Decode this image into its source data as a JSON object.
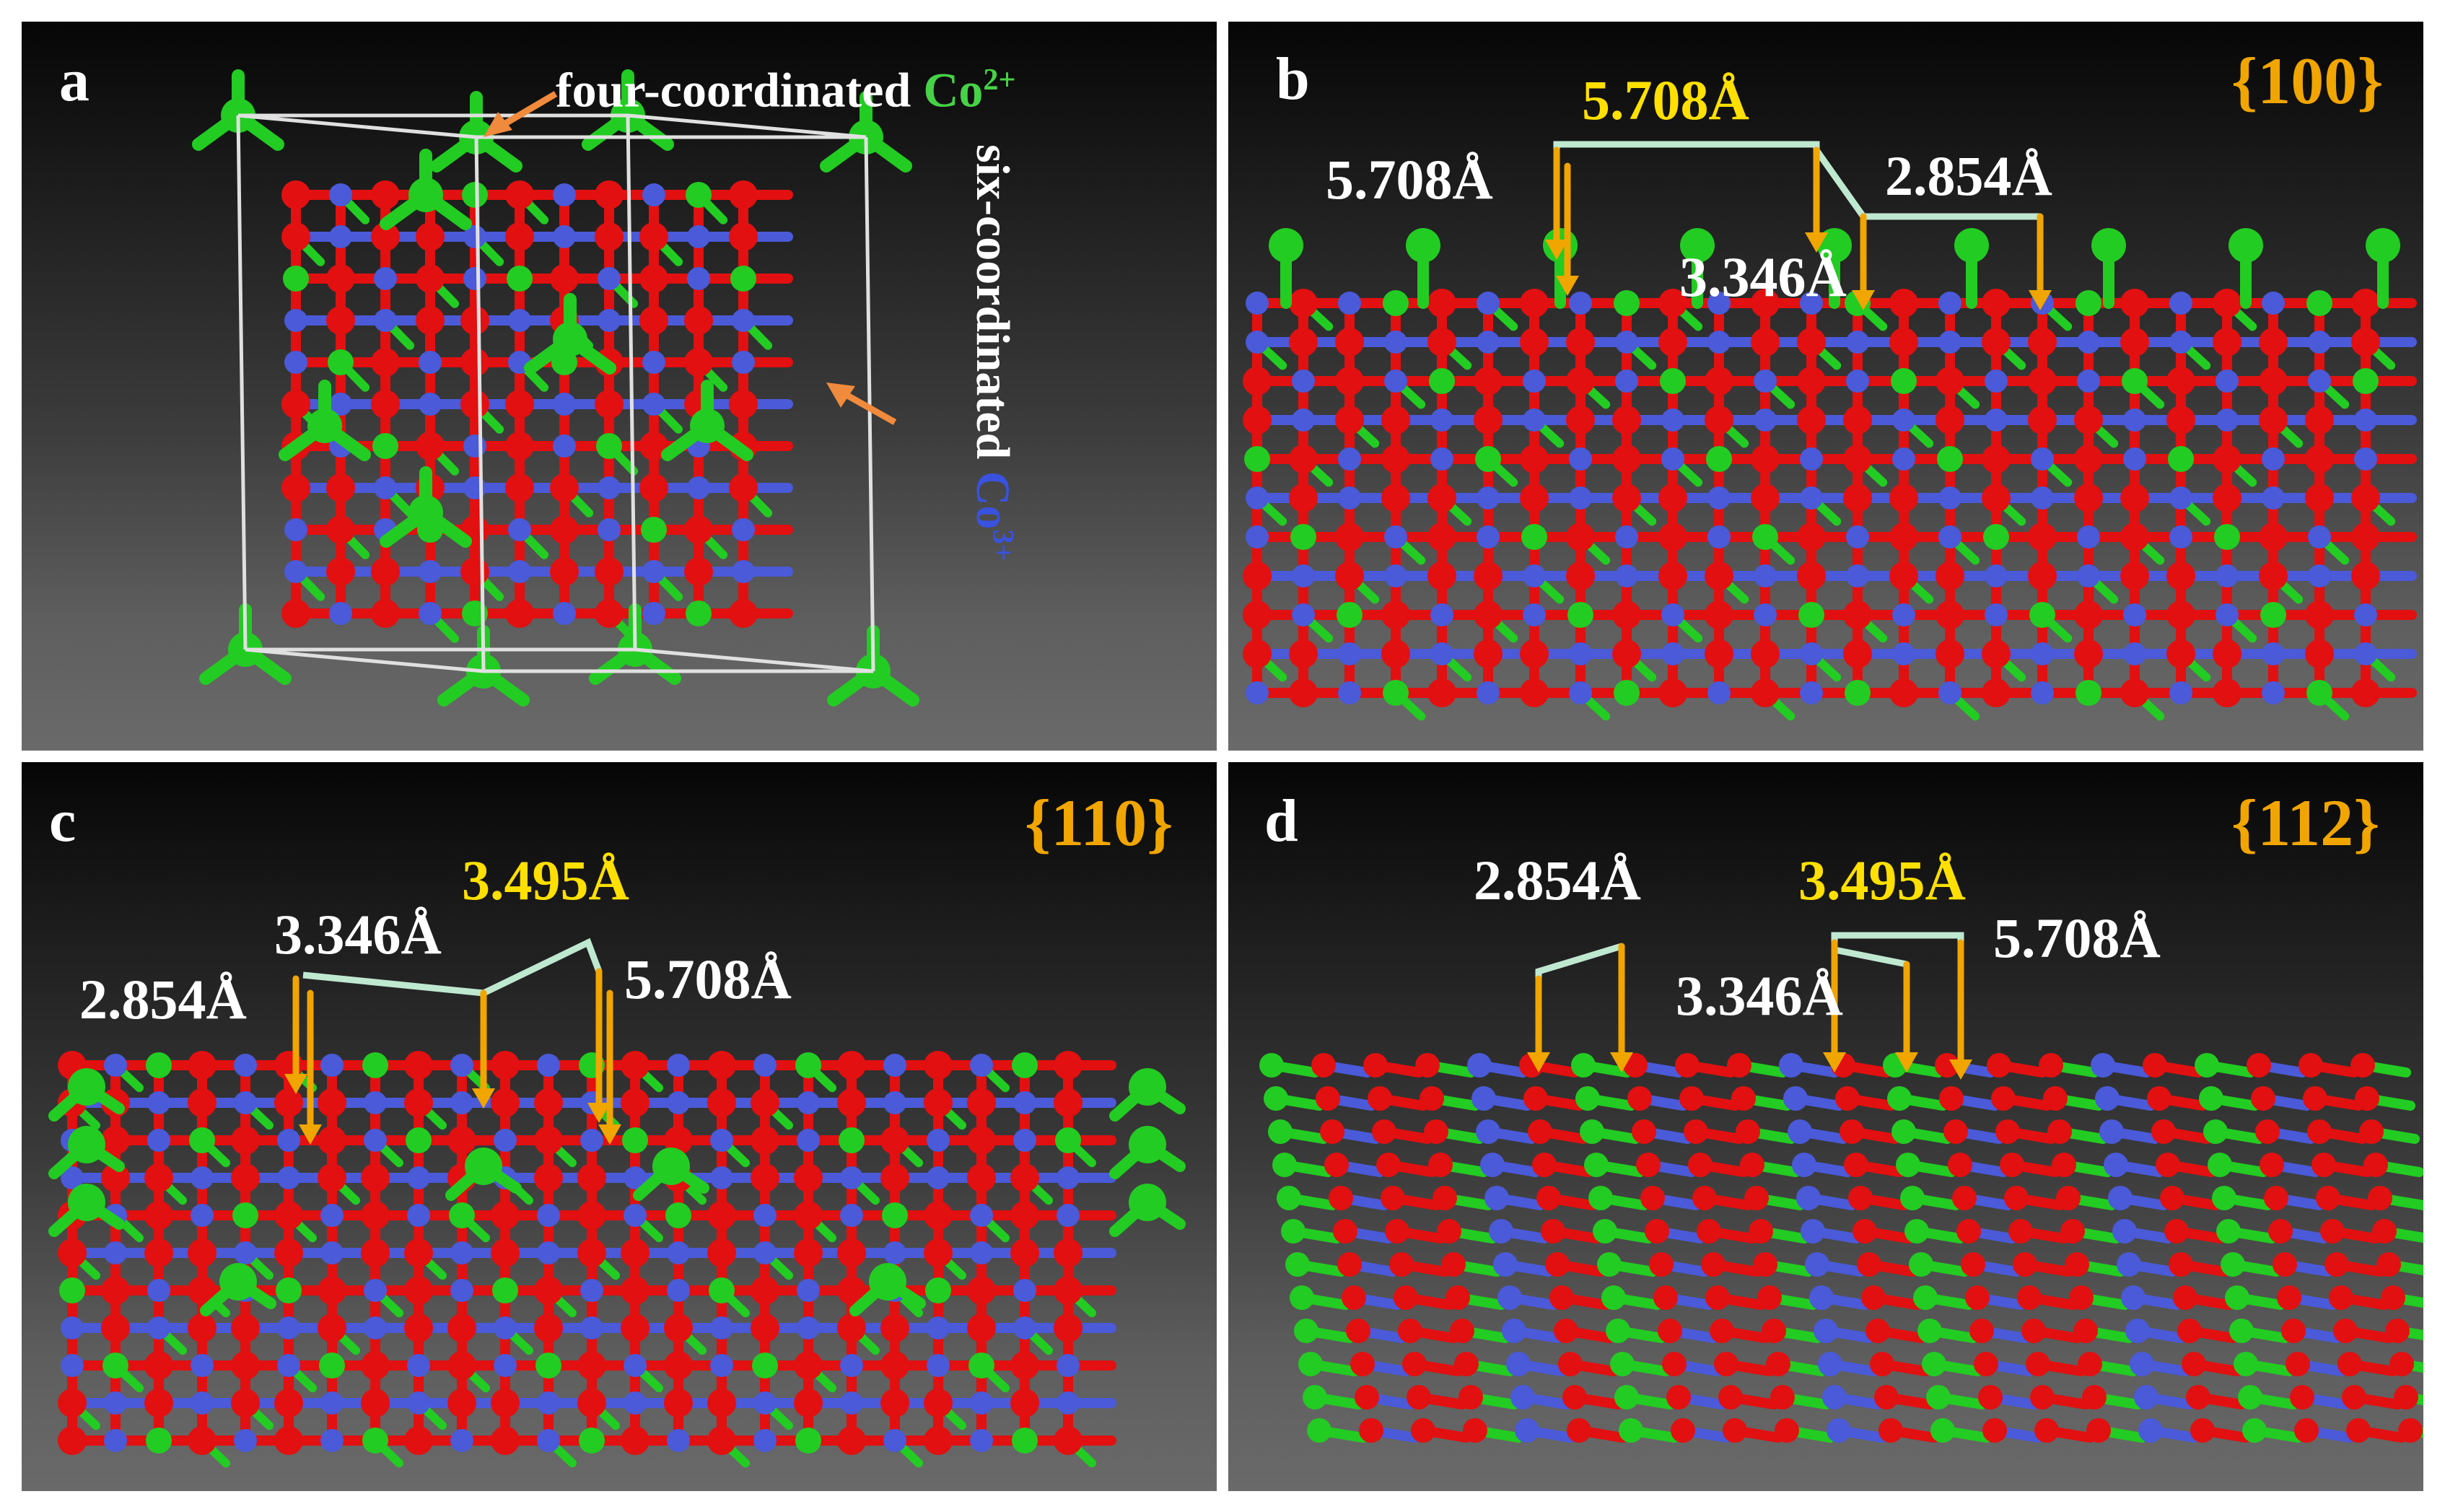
{
  "panels": [
    {
      "letter": "a"
    },
    {
      "letter": "b",
      "facet": "{100}",
      "measurements": [
        "5.708Å",
        "5.708Å",
        "2.854Å",
        "3.346Å"
      ]
    },
    {
      "letter": "c",
      "facet": "{110}",
      "measurements": [
        "3.495Å",
        "3.346Å",
        "2.854Å",
        "5.708Å"
      ]
    },
    {
      "letter": "d",
      "facet": "{112}",
      "measurements": [
        "2.854Å",
        "3.495Å",
        "5.708Å",
        "3.346Å"
      ]
    }
  ],
  "annotations": {
    "four_coord_text": "four-coordinated ",
    "four_coord_ion": "Co",
    "four_coord_charge": "2+",
    "six_coord_text": "six-coordinated ",
    "six_coord_ion": "Co",
    "six_coord_charge": "3+"
  },
  "colors": {
    "oxygen": "#e21010",
    "co_tetrahedral": "#22cc22",
    "co_octahedral": "#4a5ad8",
    "arrow": "#f0a500",
    "pointer": "#f08a3c",
    "bracket": "#bfe8d0",
    "facet_label": "#f0a500",
    "highlight_label": "#ffe000"
  }
}
